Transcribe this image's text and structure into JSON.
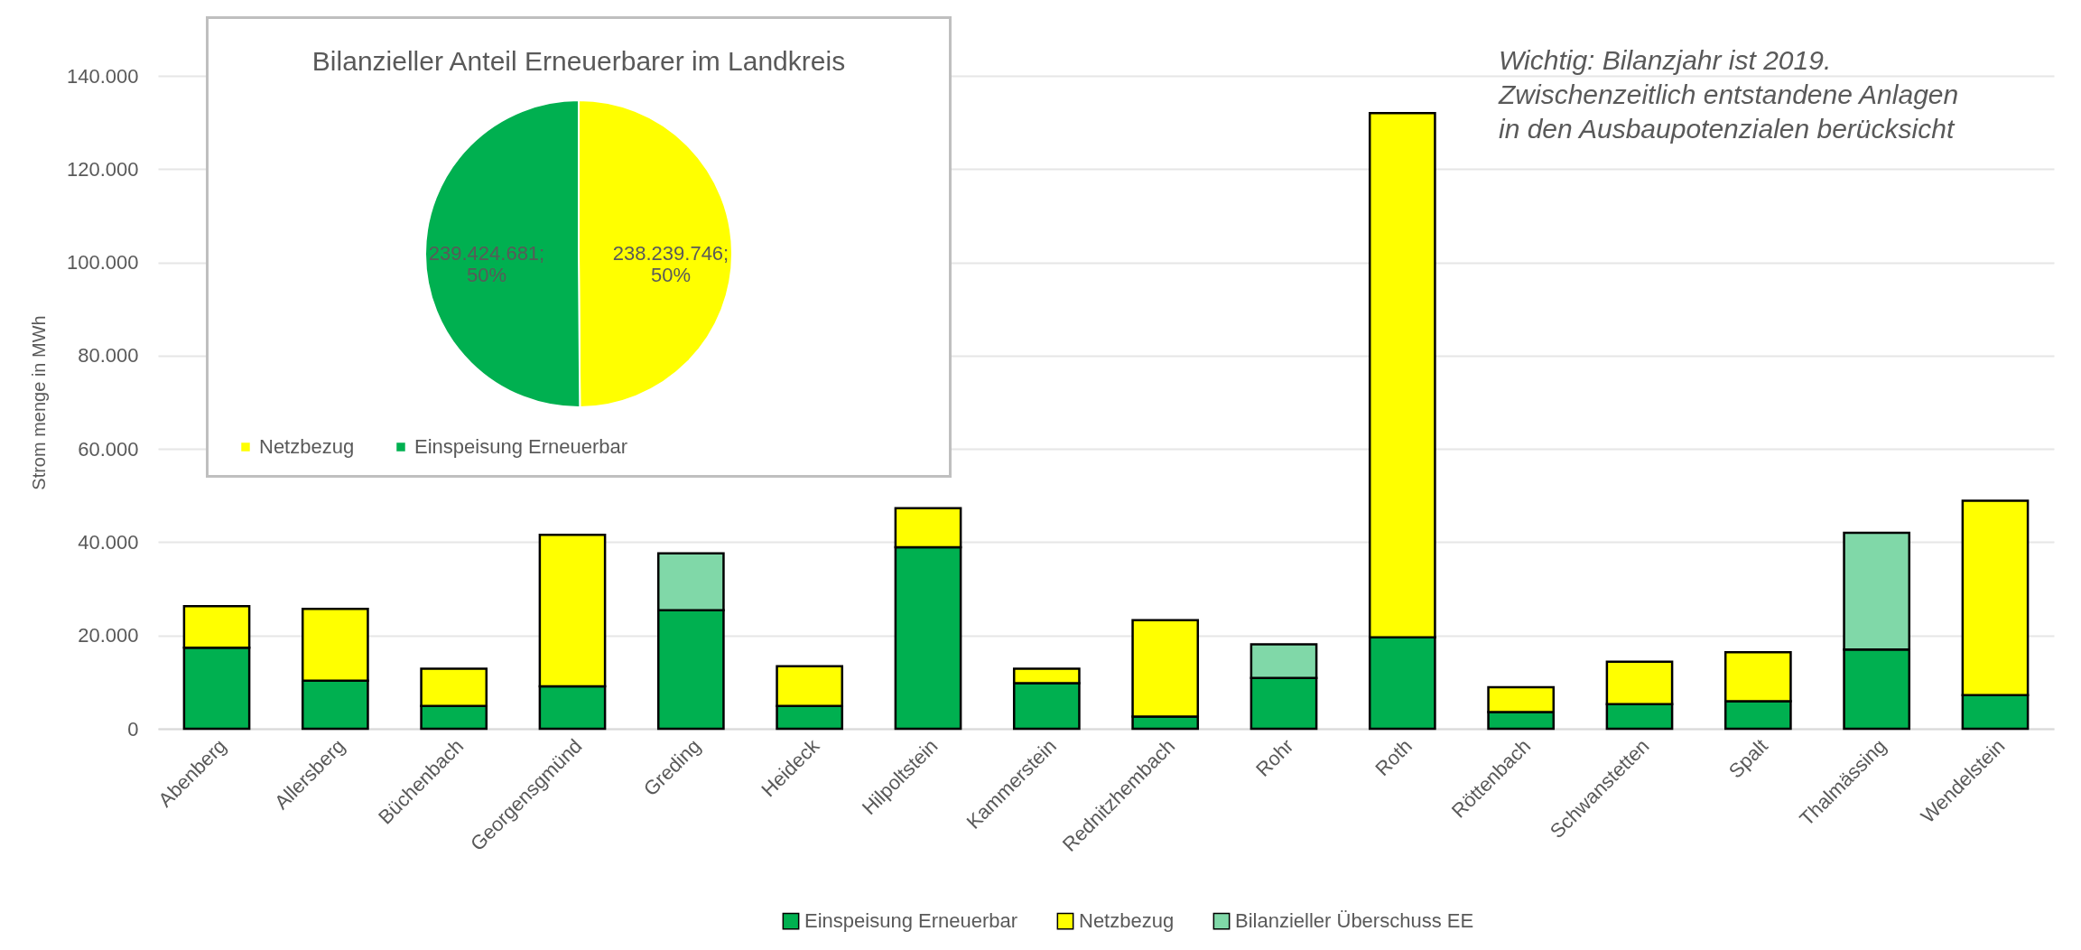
{
  "chart_data": [
    {
      "type": "bar",
      "ylabel": "Strom menge in MWh",
      "stacked": true,
      "grid": "y",
      "legend": "bottom",
      "categories": [
        "Abenberg",
        "Allersberg",
        "Büchenbach",
        "Georgensgmünd",
        "Greding",
        "Heideck",
        "Hilpoltstein",
        "Kammerstein",
        "Rednitzhembach",
        "Rohr",
        "Roth",
        "Röttenbach",
        "Schwanstetten",
        "Spalt",
        "Thalmässing",
        "Wendelstein"
      ],
      "series": [
        {
          "name": "Einspeisung Erneuerbar",
          "color": "#00b050",
          "values": [
            17400,
            10300,
            4900,
            9100,
            25400,
            4900,
            38900,
            9800,
            2600,
            10900,
            19600,
            3600,
            5300,
            5900,
            17000,
            7200
          ]
        },
        {
          "name": "Netzbezug",
          "color": "#ffff00",
          "values": [
            8900,
            15400,
            8000,
            32500,
            null,
            8500,
            8400,
            3100,
            20700,
            null,
            112400,
            5300,
            9100,
            10500,
            null,
            41700
          ]
        },
        {
          "name": "Bilanzieller Überschuss EE",
          "color": "#80d8a8",
          "values": [
            null,
            null,
            null,
            null,
            12200,
            null,
            null,
            null,
            null,
            7200,
            null,
            null,
            null,
            null,
            25000,
            null
          ]
        }
      ],
      "ylim": [
        0,
        140000
      ],
      "yticks": [
        0,
        {
          "value": 20000,
          "label": "20.000"
        },
        {
          "value": 40000,
          "label": "40.000"
        },
        {
          "value": 60000,
          "label": "60.000"
        },
        {
          "value": 80000,
          "label": "80.000"
        },
        {
          "value": 100000,
          "label": "100.000"
        },
        {
          "value": 120000,
          "label": "120.000"
        },
        {
          "value": 140000,
          "label": "140.000"
        }
      ],
      "annotations": [
        "Wichtig: Bilanzjahr ist 2019.",
        "Zwischenzeitlich entstandene Anlagen",
        "in den Ausbaupotenzialen berücksicht"
      ]
    },
    {
      "type": "pie",
      "title": "Bilanzieller Anteil Erneuerbarer im Landkreis",
      "legend": "bottom",
      "categories": [
        "Netzbezug",
        "Einspeisung Erneuerbar"
      ],
      "values": [
        238239746,
        239424681
      ],
      "colors": [
        "#ffff00",
        "#00b050"
      ],
      "value_labels": [
        "238.239.746; 50%",
        "239.424.681; 50%"
      ]
    }
  ]
}
